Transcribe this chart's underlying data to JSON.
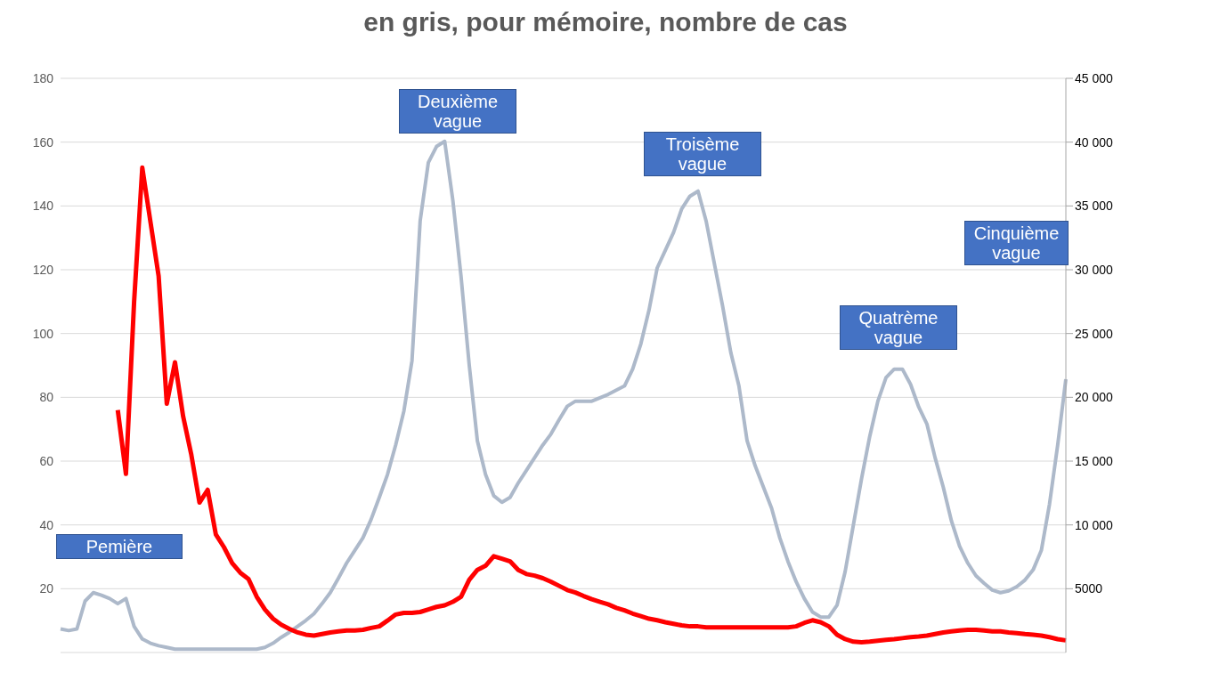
{
  "chart_data": {
    "type": "line",
    "title": "en gris, pour mémoire, nombre de cas",
    "categories": [
      null,
      null,
      null,
      null,
      null,
      null,
      null,
      null,
      null,
      null,
      null,
      null,
      null,
      null,
      null,
      null,
      null,
      null,
      null,
      null,
      null,
      null,
      null,
      null,
      null,
      null,
      null,
      null,
      null,
      null,
      null,
      null,
      null,
      null,
      null,
      null,
      null,
      null,
      null,
      null,
      null,
      null,
      null,
      null,
      null,
      null,
      null,
      null,
      null,
      null,
      null,
      null,
      null,
      null,
      null,
      null,
      null,
      null,
      null,
      null,
      null,
      null,
      null,
      null,
      null,
      null,
      null,
      null,
      null,
      null,
      null,
      null,
      null,
      null,
      null,
      null,
      null,
      null,
      null,
      null,
      null,
      null,
      null,
      null,
      null,
      null,
      null,
      null,
      null,
      null,
      null,
      null,
      null,
      null,
      null,
      null,
      null,
      null,
      null,
      null,
      null,
      null,
      null,
      null,
      null,
      null,
      null,
      null,
      null,
      null,
      null,
      null,
      null,
      null,
      null,
      null,
      null,
      null,
      null,
      null,
      null,
      null,
      null,
      null
    ],
    "series": [
      {
        "color": "#adb9ca",
        "axis": "y2",
        "values": [
          1850,
          1720,
          1850,
          4030,
          4690,
          4490,
          4230,
          3830,
          4230,
          2050,
          1060,
          730,
          530,
          400,
          260,
          260,
          260,
          260,
          260,
          260,
          260,
          260,
          260,
          260,
          260,
          400,
          730,
          1190,
          1590,
          2050,
          2510,
          3040,
          3830,
          4690,
          5820,
          7010,
          8000,
          8990,
          10440,
          12160,
          13950,
          16260,
          18900,
          22870,
          33840,
          38400,
          39660,
          40060,
          35430,
          29480,
          22540,
          16590,
          13950,
          12290,
          11770,
          12160,
          13290,
          14280,
          15270,
          16260,
          17120,
          18240,
          19300,
          19700,
          19700,
          19700,
          19960,
          20230,
          20560,
          20890,
          22210,
          24190,
          26840,
          30140,
          31530,
          32920,
          34770,
          35760,
          36160,
          33780,
          30470,
          27170,
          23530,
          20890,
          16590,
          14610,
          12960,
          11300,
          8990,
          7140,
          5550,
          4230,
          3170,
          2780,
          2780,
          3700,
          6350,
          9980,
          13620,
          16920,
          19700,
          21550,
          22210,
          22210,
          21020,
          19240,
          17910,
          15270,
          12960,
          10310,
          8330,
          7010,
          6020,
          5420,
          4890,
          4690,
          4830,
          5160,
          5680,
          6480,
          8000,
          11630,
          16260,
          21420
        ]
      },
      {
        "color": "#ff0000",
        "axis": "y",
        "values": [
          null,
          null,
          null,
          null,
          null,
          null,
          null,
          76,
          56,
          110,
          152,
          135,
          118,
          78,
          91,
          74,
          62,
          47,
          51,
          37,
          33,
          28,
          25,
          23,
          17.5,
          13.5,
          10.6,
          8.7,
          7.4,
          6.3,
          5.6,
          5.3,
          5.8,
          6.3,
          6.6,
          6.9,
          6.9,
          7.1,
          7.7,
          8.2,
          10,
          11.9,
          12.4,
          12.4,
          12.7,
          13.5,
          14.3,
          14.8,
          15.9,
          17.5,
          22.8,
          25.9,
          27.2,
          30.2,
          29.4,
          28.6,
          25.9,
          24.6,
          24.1,
          23.3,
          22.2,
          20.9,
          19.6,
          18.8,
          17.7,
          16.7,
          15.9,
          15.1,
          14,
          13.2,
          12.2,
          11.4,
          10.6,
          10.1,
          9.5,
          9,
          8.5,
          8.2,
          8.2,
          7.9,
          7.9,
          7.9,
          7.9,
          7.9,
          7.9,
          7.9,
          7.9,
          7.9,
          7.9,
          7.9,
          8.2,
          9.3,
          10.1,
          9.5,
          8.2,
          5.6,
          4.2,
          3.4,
          3.2,
          3.4,
          3.7,
          4,
          4.2,
          4.5,
          4.8,
          5,
          5.3,
          5.8,
          6.3,
          6.6,
          6.9,
          7.1,
          7.1,
          6.9,
          6.6,
          6.6,
          6.3,
          6.1,
          5.8,
          5.6,
          5.3,
          4.8,
          4.2,
          3.8
        ]
      }
    ],
    "ylim": [
      0,
      180
    ],
    "yticks": [
      20,
      40,
      60,
      80,
      100,
      120,
      140,
      160,
      180
    ],
    "y2lim": [
      0,
      45000
    ],
    "y2ticks": [
      {
        "value": 5000,
        "label": "5000"
      },
      {
        "value": 10000,
        "label": "10 000"
      },
      {
        "value": 15000,
        "label": "15 000"
      },
      {
        "value": 20000,
        "label": "20 000"
      },
      {
        "value": 25000,
        "label": "25 000"
      },
      {
        "value": 30000,
        "label": "30 000"
      },
      {
        "value": 35000,
        "label": "35 000"
      },
      {
        "value": 40000,
        "label": "40 000"
      },
      {
        "value": 45000,
        "label": "45 000"
      }
    ],
    "grid": "y",
    "legend": false,
    "marker": "none",
    "line_style": "solid",
    "tick_labels": "y",
    "annotations": [
      "Pemière",
      "Deuxième vague",
      "Troisème vague",
      "Quatrème vague",
      "Cinquième vague"
    ]
  }
}
